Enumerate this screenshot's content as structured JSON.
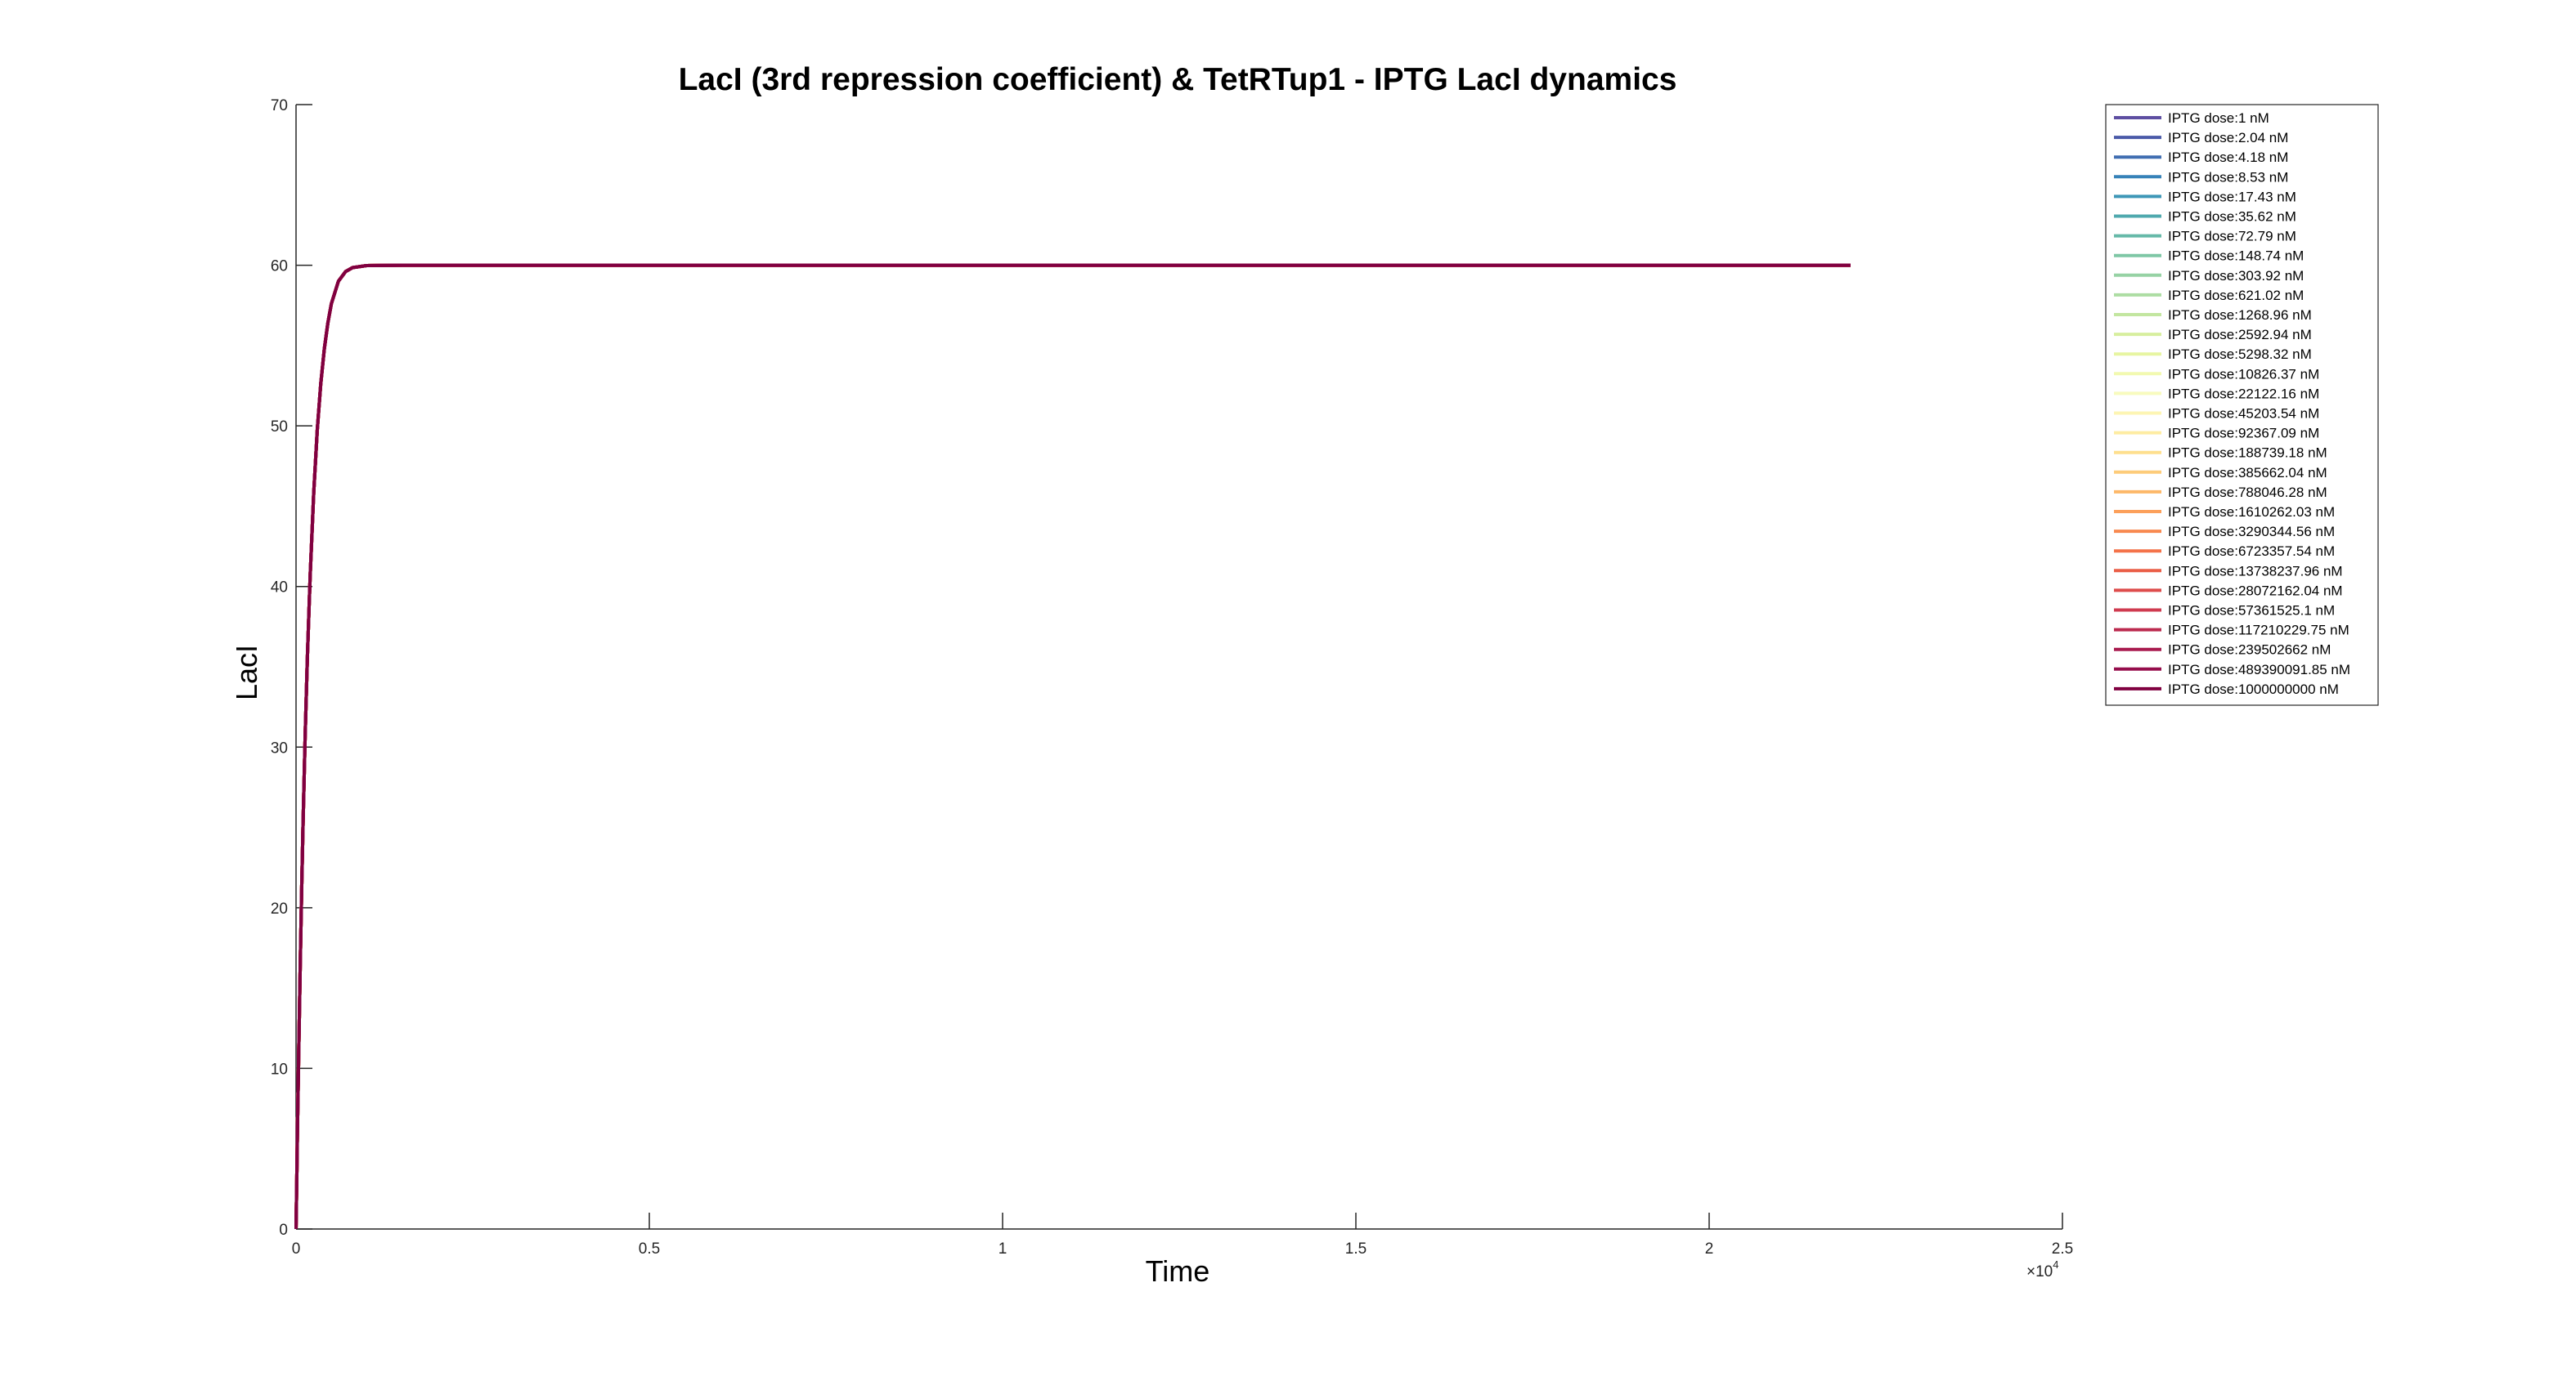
{
  "chart_data": {
    "type": "line",
    "title": "LacI (3rd repression coefficient) & TetRTup1 - IPTG LacI dynamics",
    "xlabel": "Time",
    "ylabel": "LacI",
    "xlim": [
      0,
      25000
    ],
    "ylim": [
      0,
      70
    ],
    "x_ticks": [
      0,
      5000,
      10000,
      15000,
      20000,
      25000
    ],
    "x_tick_labels": [
      "0",
      "0.5",
      "1",
      "1.5",
      "2",
      "2.5"
    ],
    "x_exponent_label": "×10",
    "x_exponent_power": "4",
    "y_ticks": [
      0,
      10,
      20,
      30,
      40,
      50,
      60,
      70
    ],
    "y_tick_labels": [
      "0",
      "10",
      "20",
      "30",
      "40",
      "50",
      "60",
      "70"
    ],
    "grid": false,
    "legend_position": "top-right outside",
    "x": [
      0,
      10,
      20,
      40,
      60,
      80,
      100,
      130,
      160,
      200,
      250,
      300,
      350,
      400,
      450,
      500,
      600,
      700,
      800,
      1000,
      1500,
      2000,
      3000,
      5000,
      10000,
      15000,
      22000
    ],
    "series_shape": [
      0,
      3.1,
      6.1,
      11.6,
      16.6,
      21.2,
      25.3,
      30.8,
      35.5,
      40.7,
      45.8,
      49.7,
      52.6,
      54.8,
      56.4,
      57.6,
      59.0,
      59.6,
      59.85,
      59.98,
      60.0,
      60.0,
      60.0,
      60.0,
      60.0,
      60.0,
      60.0
    ],
    "series": [
      {
        "name": "IPTG dose:1 nM",
        "color": "#5e4fa2"
      },
      {
        "name": "IPTG dose:2.04 nM",
        "color": "#4a5aa8"
      },
      {
        "name": "IPTG dose:4.18 nM",
        "color": "#3f6db1"
      },
      {
        "name": "IPTG dose:8.53 nM",
        "color": "#3682b8"
      },
      {
        "name": "IPTG dose:17.43 nM",
        "color": "#3e97b7"
      },
      {
        "name": "IPTG dose:35.62 nM",
        "color": "#4fa9ae"
      },
      {
        "name": "IPTG dose:72.79 nM",
        "color": "#65b9a8"
      },
      {
        "name": "IPTG dose:148.74 nM",
        "color": "#7ec7a5"
      },
      {
        "name": "IPTG dose:303.92 nM",
        "color": "#96d2a4"
      },
      {
        "name": "IPTG dose:621.02 nM",
        "color": "#addda3"
      },
      {
        "name": "IPTG dose:1268.96 nM",
        "color": "#c3e6a0"
      },
      {
        "name": "IPTG dose:2592.94 nM",
        "color": "#d7ee9e"
      },
      {
        "name": "IPTG dose:5298.32 nM",
        "color": "#e7f5a1"
      },
      {
        "name": "IPTG dose:10826.37 nM",
        "color": "#f2f9b0"
      },
      {
        "name": "IPTG dose:22122.16 nM",
        "color": "#f8fbbe"
      },
      {
        "name": "IPTG dose:45203.54 nM",
        "color": "#fdf5b3"
      },
      {
        "name": "IPTG dose:92367.09 nM",
        "color": "#feeca2"
      },
      {
        "name": "IPTG dose:188739.18 nM",
        "color": "#fedf8e"
      },
      {
        "name": "IPTG dose:385662.04 nM",
        "color": "#fdcc7a"
      },
      {
        "name": "IPTG dose:788046.28 nM",
        "color": "#fdb869"
      },
      {
        "name": "IPTG dose:1610262.03 nM",
        "color": "#fca05b"
      },
      {
        "name": "IPTG dose:3290344.56 nM",
        "color": "#f8894f"
      },
      {
        "name": "IPTG dose:6723357.54 nM",
        "color": "#f47249"
      },
      {
        "name": "IPTG dose:13738237.96 nM",
        "color": "#ea5e47"
      },
      {
        "name": "IPTG dose:28072162.04 nM",
        "color": "#de4c4b"
      },
      {
        "name": "IPTG dose:57361525.1 nM",
        "color": "#cf3a4f"
      },
      {
        "name": "IPTG dose:117210229.75 nM",
        "color": "#bb2a4f"
      },
      {
        "name": "IPTG dose:239502662 nM",
        "color": "#a81a4e"
      },
      {
        "name": "IPTG dose:489390091.85 nM",
        "color": "#950d4b"
      },
      {
        "name": "IPTG dose:1000000000 nM",
        "color": "#800040"
      }
    ]
  }
}
